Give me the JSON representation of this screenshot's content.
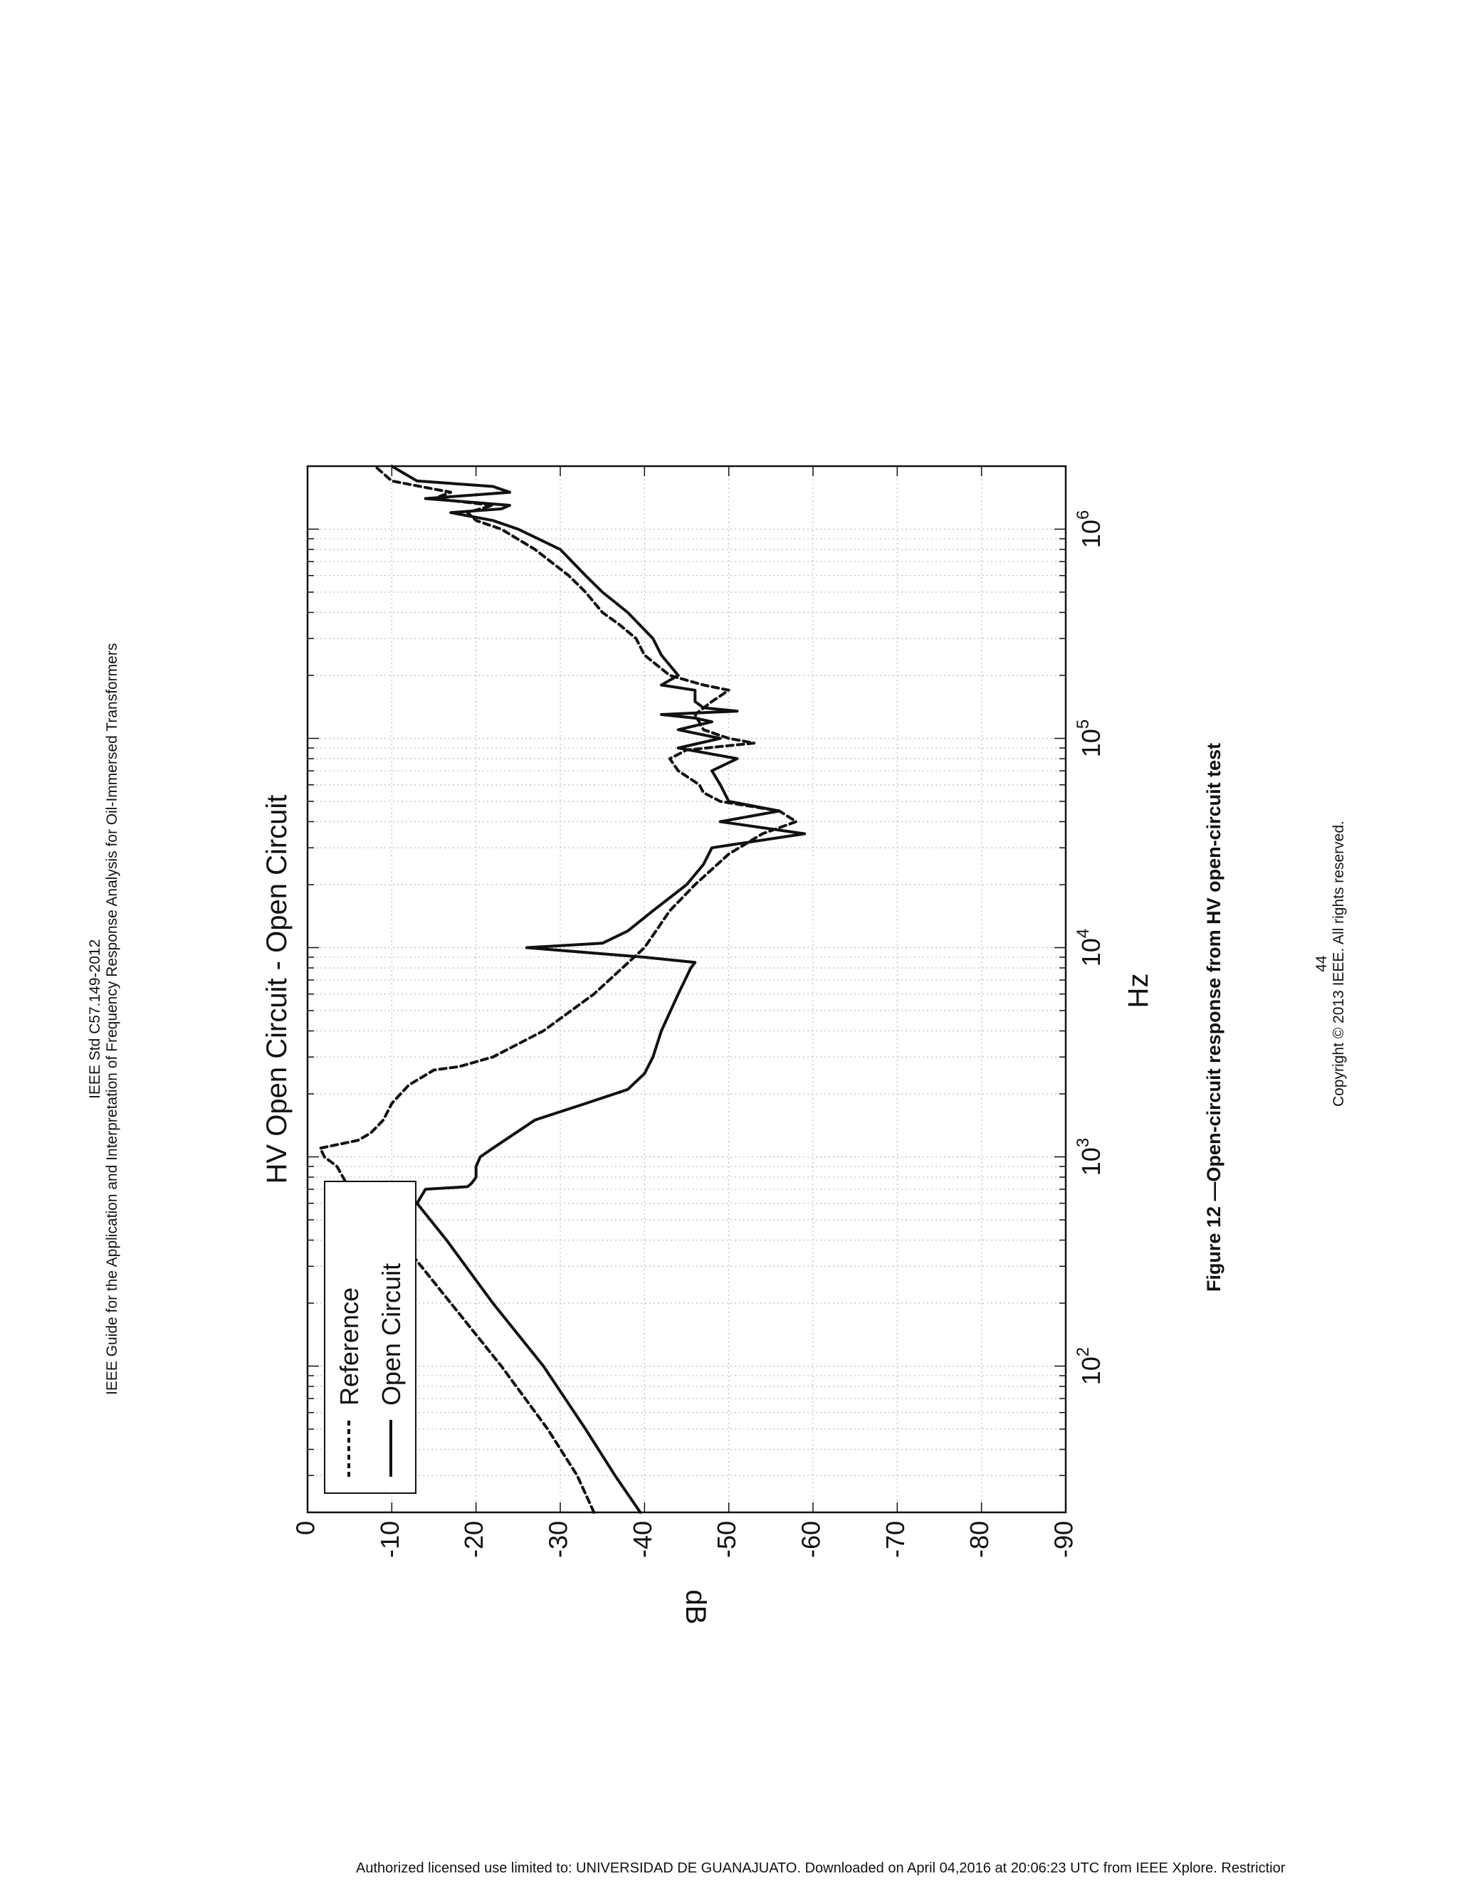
{
  "header": {
    "standard_id": "IEEE Std C57.149-2012",
    "guide_title": "IEEE Guide for the Application and Interpretation of Frequency Response Analysis for Oil-Immersed Transformers"
  },
  "caption": "Figure 12 —Open-circuit response from HV open-circuit test",
  "footer": {
    "page_number": "44",
    "copyright": "Copyright © 2013 IEEE. All rights reserved."
  },
  "license_notice": "Authorized licensed use limited to: UNIVERSIDAD DE GUANAJUATO. Downloaded on April 04,2016 at 20:06:23 UTC from IEEE Xplore.  Restrictior",
  "chart_data": {
    "type": "line",
    "title": "HV Open Circuit - Open Circuit",
    "xlabel": "Hz",
    "ylabel": "dB",
    "xscale": "log",
    "xlim": [
      20,
      2000000
    ],
    "ylim": [
      -90,
      0
    ],
    "grid": true,
    "legend_position": "top-left",
    "x_ticks": [
      {
        "value": 100,
        "label": "10",
        "exp": "2"
      },
      {
        "value": 1000,
        "label": "10",
        "exp": "3"
      },
      {
        "value": 10000,
        "label": "10",
        "exp": "4"
      },
      {
        "value": 100000,
        "label": "10",
        "exp": "5"
      },
      {
        "value": 1000000,
        "label": "10",
        "exp": "6"
      }
    ],
    "y_ticks": [
      {
        "value": 0,
        "label": "0"
      },
      {
        "value": -10,
        "label": "-10"
      },
      {
        "value": -20,
        "label": "-20"
      },
      {
        "value": -30,
        "label": "-30"
      },
      {
        "value": -40,
        "label": "-40"
      },
      {
        "value": -50,
        "label": "-50"
      },
      {
        "value": -60,
        "label": "-60"
      },
      {
        "value": -70,
        "label": "-70"
      },
      {
        "value": -80,
        "label": "-80"
      },
      {
        "value": -90,
        "label": "-90"
      }
    ],
    "series": [
      {
        "name": "Reference",
        "style": "dashed",
        "color": "#111111",
        "points": [
          [
            20,
            -34
          ],
          [
            30,
            -32
          ],
          [
            50,
            -28.5
          ],
          [
            100,
            -23
          ],
          [
            200,
            -17
          ],
          [
            400,
            -11
          ],
          [
            700,
            -5
          ],
          [
            900,
            -3.5
          ],
          [
            1000,
            -2
          ],
          [
            1100,
            -1.5
          ],
          [
            1200,
            -6
          ],
          [
            1300,
            -7.5
          ],
          [
            1500,
            -9
          ],
          [
            1800,
            -10
          ],
          [
            2200,
            -12
          ],
          [
            2600,
            -15
          ],
          [
            2700,
            -18
          ],
          [
            3000,
            -22
          ],
          [
            4000,
            -28
          ],
          [
            6000,
            -34
          ],
          [
            10000,
            -40
          ],
          [
            15000,
            -43
          ],
          [
            20000,
            -46
          ],
          [
            28000,
            -50
          ],
          [
            35000,
            -54
          ],
          [
            40000,
            -58
          ],
          [
            45000,
            -56
          ],
          [
            50000,
            -49
          ],
          [
            55000,
            -47
          ],
          [
            60000,
            -46.5
          ],
          [
            70000,
            -44
          ],
          [
            80000,
            -43
          ],
          [
            88000,
            -45
          ],
          [
            95000,
            -53
          ],
          [
            100000,
            -50
          ],
          [
            110000,
            -47
          ],
          [
            130000,
            -46
          ],
          [
            150000,
            -48
          ],
          [
            170000,
            -50
          ],
          [
            180000,
            -47
          ],
          [
            200000,
            -43
          ],
          [
            250000,
            -40
          ],
          [
            300000,
            -39
          ],
          [
            350000,
            -37
          ],
          [
            400000,
            -35
          ],
          [
            500000,
            -33
          ],
          [
            600000,
            -31
          ],
          [
            800000,
            -27
          ],
          [
            1000000,
            -23
          ],
          [
            1100000,
            -20
          ],
          [
            1200000,
            -19
          ],
          [
            1300000,
            -22
          ],
          [
            1400000,
            -15
          ],
          [
            1500000,
            -17
          ],
          [
            1700000,
            -10
          ],
          [
            2000000,
            -8
          ]
        ]
      },
      {
        "name": "Open Circuit",
        "style": "solid",
        "color": "#111111",
        "points": [
          [
            20,
            -39.5
          ],
          [
            30,
            -36.5
          ],
          [
            50,
            -33
          ],
          [
            100,
            -28
          ],
          [
            200,
            -22
          ],
          [
            400,
            -16.5
          ],
          [
            600,
            -13
          ],
          [
            700,
            -14
          ],
          [
            720,
            -19
          ],
          [
            750,
            -19.5
          ],
          [
            800,
            -20
          ],
          [
            900,
            -20
          ],
          [
            1000,
            -20.5
          ],
          [
            1100,
            -22
          ],
          [
            1500,
            -27
          ],
          [
            1800,
            -33
          ],
          [
            2100,
            -38
          ],
          [
            2500,
            -40
          ],
          [
            3000,
            -41
          ],
          [
            4000,
            -42
          ],
          [
            6000,
            -44
          ],
          [
            8000,
            -45.5
          ],
          [
            8500,
            -46
          ],
          [
            9000,
            -40
          ],
          [
            10000,
            -26
          ],
          [
            10500,
            -35
          ],
          [
            12000,
            -38
          ],
          [
            15000,
            -41
          ],
          [
            20000,
            -45
          ],
          [
            25000,
            -47
          ],
          [
            30000,
            -48
          ],
          [
            35000,
            -59
          ],
          [
            40000,
            -49
          ],
          [
            45000,
            -56
          ],
          [
            50000,
            -50
          ],
          [
            60000,
            -49
          ],
          [
            70000,
            -48
          ],
          [
            80000,
            -51
          ],
          [
            90000,
            -44
          ],
          [
            100000,
            -49
          ],
          [
            110000,
            -44
          ],
          [
            120000,
            -48
          ],
          [
            125000,
            -46
          ],
          [
            130000,
            -42
          ],
          [
            135000,
            -51
          ],
          [
            140000,
            -47
          ],
          [
            150000,
            -46
          ],
          [
            170000,
            -46
          ],
          [
            180000,
            -42
          ],
          [
            200000,
            -44
          ],
          [
            250000,
            -42
          ],
          [
            300000,
            -41
          ],
          [
            400000,
            -38
          ],
          [
            500000,
            -35
          ],
          [
            600000,
            -33
          ],
          [
            800000,
            -30
          ],
          [
            1000000,
            -25
          ],
          [
            1100000,
            -22
          ],
          [
            1200000,
            -17
          ],
          [
            1250000,
            -23
          ],
          [
            1300000,
            -24
          ],
          [
            1400000,
            -14
          ],
          [
            1500000,
            -24
          ],
          [
            1600000,
            -22
          ],
          [
            1700000,
            -13
          ],
          [
            2000000,
            -10
          ]
        ]
      }
    ]
  }
}
